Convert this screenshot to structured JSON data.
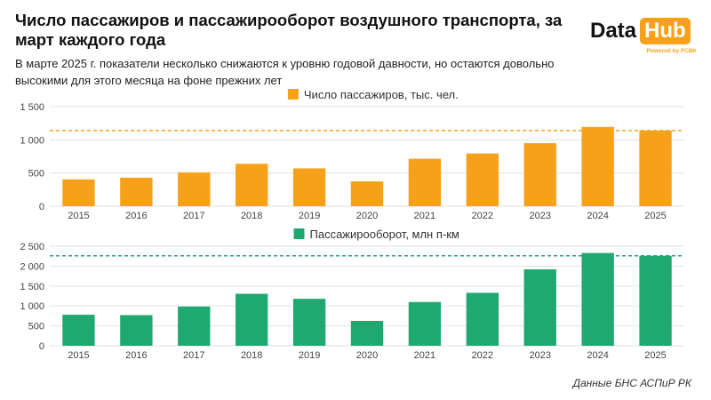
{
  "header": {
    "title": "Число пассажиров и пассажирооборот воздушного транспорта, за март каждого года",
    "subtitle": "В марте 2025 г. показатели несколько снижаются к уровню годовой давности, но остаются довольно высокими для этого месяца на фоне прежних лет"
  },
  "logo": {
    "data_text": "Data",
    "hub_text": "Hub",
    "powered_text": "Powered by FCBK"
  },
  "source": "Данные БНС АСПиР РК",
  "chart_data": [
    {
      "type": "bar",
      "title": "Число пассажиров, тыс. чел.",
      "legend": "Число пассажиров, тыс. чел.",
      "color": "#f7a11a",
      "categories": [
        "2015",
        "2016",
        "2017",
        "2018",
        "2019",
        "2020",
        "2021",
        "2022",
        "2023",
        "2024",
        "2025"
      ],
      "values": [
        405,
        430,
        510,
        640,
        570,
        375,
        715,
        795,
        950,
        1195,
        1140
      ],
      "ylim": [
        0,
        1500
      ],
      "yticks": [
        0,
        500,
        1000,
        1500
      ],
      "ytick_labels": [
        "0",
        "500",
        "1 000",
        "1 500"
      ],
      "reference_line": 1140,
      "grid": true
    },
    {
      "type": "bar",
      "title": "Пассажирооборот, млн п-км",
      "legend": "Пассажирооборот, млн п-км",
      "color": "#1fa971",
      "categories": [
        "2015",
        "2016",
        "2017",
        "2018",
        "2019",
        "2020",
        "2021",
        "2022",
        "2023",
        "2024",
        "2025"
      ],
      "values": [
        780,
        770,
        985,
        1305,
        1180,
        625,
        1100,
        1330,
        1920,
        2330,
        2260
      ],
      "ylim": [
        0,
        2500
      ],
      "yticks": [
        0,
        500,
        1000,
        1500,
        2000,
        2500
      ],
      "ytick_labels": [
        "0",
        "500",
        "1 000",
        "1 500",
        "2 000",
        "2 500"
      ],
      "reference_line": 2260,
      "grid": true
    }
  ]
}
